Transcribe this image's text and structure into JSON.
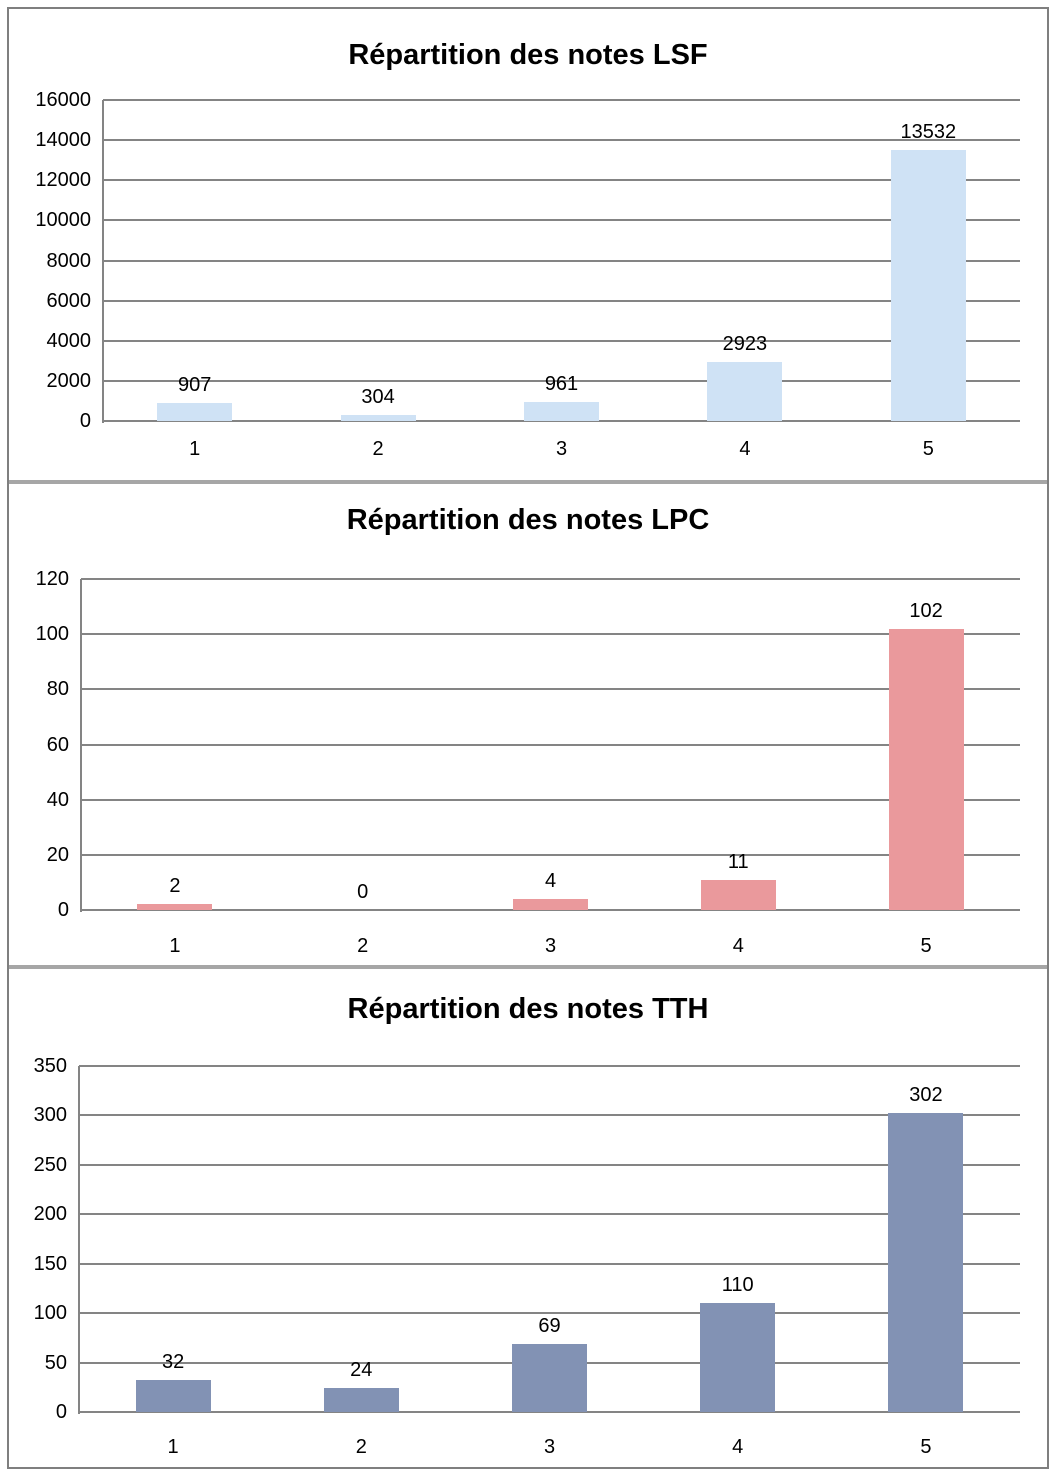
{
  "page": {
    "background_color": "#ffffff",
    "frame_border_color": "#7f7f7f",
    "divider_color": "#a6a6a6"
  },
  "chart_data": [
    {
      "type": "bar",
      "title": "Répartition des notes LSF",
      "categories": [
        "1",
        "2",
        "3",
        "4",
        "5"
      ],
      "values": [
        907,
        304,
        961,
        2923,
        13532
      ],
      "data_labels": [
        "907",
        "304",
        "961",
        "2923",
        "13532"
      ],
      "yticks": [
        0,
        2000,
        4000,
        6000,
        8000,
        10000,
        12000,
        14000,
        16000
      ],
      "ylim": [
        0,
        16000
      ],
      "xlabel": "",
      "ylabel": "",
      "legend": "none",
      "grid": true,
      "bar_color": "#cfe2f5",
      "grid_color": "#848484",
      "axis_color": "#848484",
      "text_color": "#000000"
    },
    {
      "type": "bar",
      "title": "Répartition des notes LPC",
      "categories": [
        "1",
        "2",
        "3",
        "4",
        "5"
      ],
      "values": [
        2,
        0,
        4,
        11,
        102
      ],
      "data_labels": [
        "2",
        "0",
        "4",
        "11",
        "102"
      ],
      "yticks": [
        0,
        20,
        40,
        60,
        80,
        100,
        120
      ],
      "ylim": [
        0,
        120
      ],
      "xlabel": "",
      "ylabel": "",
      "legend": "none",
      "grid": true,
      "bar_color": "#ea999c",
      "grid_color": "#848484",
      "axis_color": "#848484",
      "text_color": "#000000"
    },
    {
      "type": "bar",
      "title": "Répartition des notes TTH",
      "categories": [
        "1",
        "2",
        "3",
        "4",
        "5"
      ],
      "values": [
        32,
        24,
        69,
        110,
        302
      ],
      "data_labels": [
        "32",
        "24",
        "69",
        "110",
        "302"
      ],
      "yticks": [
        0,
        50,
        100,
        150,
        200,
        250,
        300,
        350
      ],
      "ylim": [
        0,
        350
      ],
      "xlabel": "",
      "ylabel": "",
      "legend": "none",
      "grid": true,
      "bar_color": "#8292b4",
      "grid_color": "#848484",
      "axis_color": "#848484",
      "text_color": "#000000"
    }
  ]
}
